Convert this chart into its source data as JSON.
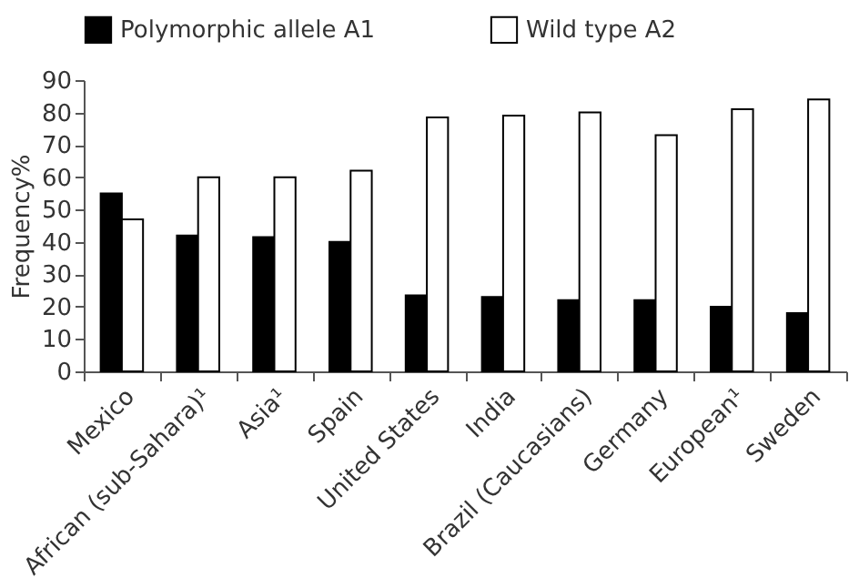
{
  "chart_data": {
    "type": "bar",
    "ylabel": "Frequency%",
    "categories": [
      "Mexico",
      "African (sub-Sahara)¹",
      "Asia¹",
      "Spain",
      "United States",
      "India",
      "Brazil (Caucasians)",
      "Germany",
      "European¹",
      "Sweden"
    ],
    "series": [
      {
        "name": "Polymorphic allele A1",
        "color": "#000000",
        "values": [
          55,
          42,
          41.5,
          40,
          23.5,
          23,
          22,
          22,
          20,
          18
        ]
      },
      {
        "name": "Wild type A2",
        "color": "#ffffff",
        "values": [
          47,
          60,
          60,
          62,
          78.5,
          79,
          80,
          73,
          81,
          84
        ]
      }
    ],
    "ylim": [
      0,
      90
    ],
    "yticks": [
      0,
      10,
      20,
      30,
      40,
      50,
      60,
      70,
      80,
      90
    ],
    "grid": false,
    "legend": "top"
  }
}
